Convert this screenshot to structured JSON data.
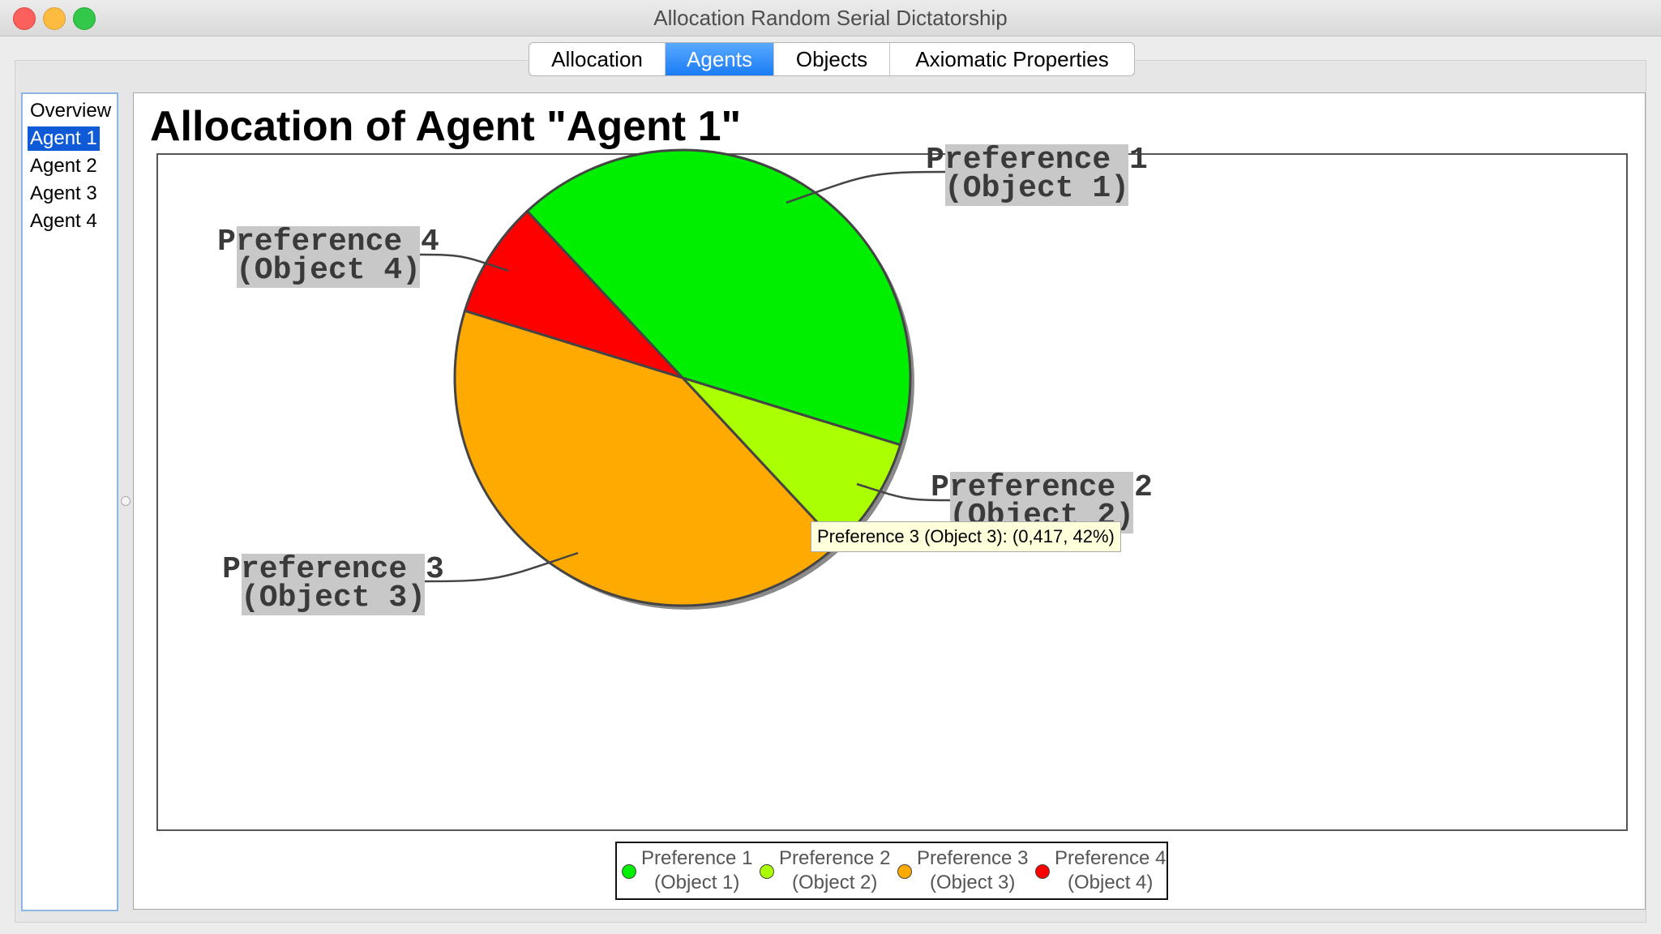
{
  "window": {
    "title": "Allocation Random Serial Dictatorship"
  },
  "tabs": [
    {
      "label": "Allocation",
      "active": false
    },
    {
      "label": "Agents",
      "active": true
    },
    {
      "label": "Objects",
      "active": false
    },
    {
      "label": "Axiomatic Properties",
      "active": false
    }
  ],
  "sidebar": {
    "items": [
      {
        "label": "Overview",
        "selected": false
      },
      {
        "label": "Agent 1",
        "selected": true
      },
      {
        "label": "Agent 2",
        "selected": false
      },
      {
        "label": "Agent 3",
        "selected": false
      },
      {
        "label": "Agent 4",
        "selected": false
      }
    ]
  },
  "tooltip": {
    "text": "Preference 3 (Object 3): (0,417, 42%)"
  },
  "chart_data": {
    "type": "pie",
    "title": "Allocation of Agent \"Agent 1\"",
    "legend_position": "bottom",
    "series": [
      {
        "label_line1": "Preference 1",
        "label_line2": "(Object 1)",
        "value": 0.417,
        "color": "#00ee00"
      },
      {
        "label_line1": "Preference 2",
        "label_line2": "(Object 2)",
        "value": 0.083,
        "color": "#aaff00"
      },
      {
        "label_line1": "Preference 3",
        "label_line2": "(Object 3)",
        "value": 0.417,
        "color": "#ffaa00"
      },
      {
        "label_line1": "Preference 4",
        "label_line2": "(Object 4)",
        "value": 0.083,
        "color": "#ff0000"
      }
    ]
  }
}
